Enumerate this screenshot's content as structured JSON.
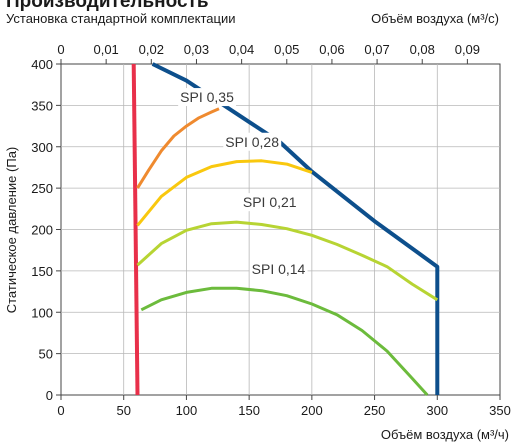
{
  "title": "Производительность",
  "subtitle": "Установка стандартной комплектации",
  "chart_data": {
    "type": "line",
    "x_axis_bottom": {
      "label": "Объём воздуха (м³/ч)",
      "range": [
        0,
        350
      ],
      "ticks": [
        0,
        50,
        100,
        150,
        200,
        250,
        300,
        350
      ]
    },
    "x_axis_top": {
      "label": "Объём воздуха (м³/с)",
      "ticks": [
        "0",
        "0,01",
        "0,02",
        "0,03",
        "0,04",
        "0,05",
        "0,06",
        "0,07",
        "0,08",
        "0,09"
      ],
      "tick_values_m3h": [
        0,
        36,
        72,
        108,
        144,
        180,
        216,
        252,
        288,
        324
      ]
    },
    "y_axis": {
      "label": "Статическое давление (Па)",
      "range": [
        0,
        400
      ],
      "ticks": [
        0,
        50,
        100,
        150,
        200,
        250,
        300,
        350,
        400
      ]
    },
    "grid": true,
    "series": [
      {
        "key": "limit-left",
        "color": "#e8304a",
        "width": 4,
        "points": [
          [
            58,
            400
          ],
          [
            61,
            0
          ]
        ]
      },
      {
        "key": "max-curve",
        "color": "#0d4f8c",
        "width": 4,
        "points": [
          [
            73,
            400
          ],
          [
            100,
            380
          ],
          [
            130,
            350
          ],
          [
            150,
            330
          ],
          [
            175,
            305
          ],
          [
            200,
            270
          ],
          [
            250,
            210
          ],
          [
            300,
            155
          ],
          [
            300,
            0
          ]
        ]
      },
      {
        "name": "SPI 0,35",
        "color": "#ef8a2f",
        "width": 3,
        "points": [
          [
            61,
            250
          ],
          [
            70,
            272
          ],
          [
            80,
            295
          ],
          [
            90,
            313
          ],
          [
            100,
            325
          ],
          [
            110,
            335
          ],
          [
            120,
            342
          ],
          [
            126,
            346
          ]
        ]
      },
      {
        "name": "SPI 0,28",
        "color": "#f9c80e",
        "width": 3,
        "points": [
          [
            61,
            205
          ],
          [
            80,
            240
          ],
          [
            100,
            263
          ],
          [
            120,
            276
          ],
          [
            140,
            282
          ],
          [
            160,
            283
          ],
          [
            180,
            279
          ],
          [
            200,
            269
          ]
        ]
      },
      {
        "name": "SPI 0,21",
        "color": "#b7d433",
        "width": 3,
        "points": [
          [
            61,
            157
          ],
          [
            80,
            183
          ],
          [
            100,
            199
          ],
          [
            120,
            207
          ],
          [
            140,
            209
          ],
          [
            160,
            206
          ],
          [
            180,
            201
          ],
          [
            200,
            193
          ],
          [
            220,
            182
          ],
          [
            240,
            169
          ],
          [
            260,
            155
          ],
          [
            280,
            134
          ],
          [
            300,
            115
          ]
        ]
      },
      {
        "name": "SPI 0,14",
        "color": "#6cbb3c",
        "width": 3,
        "points": [
          [
            64,
            103
          ],
          [
            80,
            115
          ],
          [
            100,
            124
          ],
          [
            120,
            129
          ],
          [
            140,
            129
          ],
          [
            160,
            126
          ],
          [
            180,
            120
          ],
          [
            200,
            110
          ],
          [
            220,
            97
          ],
          [
            240,
            78
          ],
          [
            260,
            53
          ],
          [
            280,
            20
          ],
          [
            292,
            0
          ]
        ]
      }
    ],
    "annotations": [
      {
        "text": "SPI 0,35",
        "x": 95,
        "y": 354
      },
      {
        "text": "SPI 0,28",
        "x": 131,
        "y": 300
      },
      {
        "text": "SPI 0,21",
        "x": 145,
        "y": 227
      },
      {
        "text": "SPI 0,14",
        "x": 152,
        "y": 146
      }
    ]
  }
}
